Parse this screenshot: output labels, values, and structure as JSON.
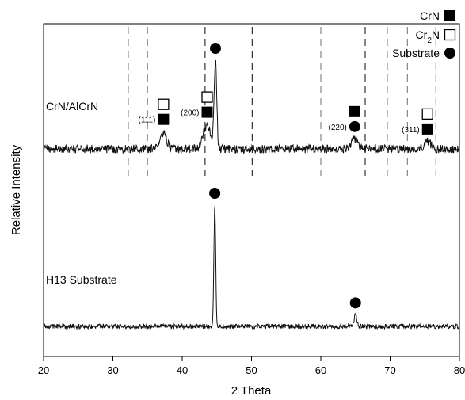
{
  "chart_data": {
    "type": "line",
    "title": "",
    "xlabel": "2 Theta",
    "ylabel": "Relative Intensity",
    "xlim": [
      20,
      80
    ],
    "x_ticks": [
      20,
      30,
      40,
      50,
      60,
      70,
      80
    ],
    "y_ticks_shown": false,
    "grid": false,
    "legend_position": "top-right",
    "legend": [
      {
        "label": "CrN",
        "marker": "filled-square"
      },
      {
        "label_main": "Cr",
        "label_sub": "2",
        "label_tail": "N",
        "marker": "open-square"
      },
      {
        "label": "Substrate",
        "marker": "filled-circle"
      }
    ],
    "series": [
      {
        "name": "CrN/AlCrN",
        "baseline": 0.62,
        "noise": 0.035,
        "peaks": [
          {
            "x": 37.3,
            "height": 0.14,
            "width": 0.45
          },
          {
            "x": 43.6,
            "height": 0.2,
            "width": 0.55
          },
          {
            "x": 44.8,
            "height": 0.73,
            "width": 0.18
          },
          {
            "x": 64.9,
            "height": 0.08,
            "width": 0.5
          },
          {
            "x": 75.4,
            "height": 0.06,
            "width": 0.5
          }
        ]
      },
      {
        "name": "H13 Substrate",
        "baseline": -0.02,
        "noise": 0.02,
        "peaks": [
          {
            "x": 44.7,
            "height": 1.0,
            "width": 0.13
          },
          {
            "x": 65.0,
            "height": 0.09,
            "width": 0.2
          }
        ]
      }
    ],
    "reference_lines": [
      {
        "x": 32.2,
        "color": "#333333"
      },
      {
        "x": 35.0,
        "color": "#888888"
      },
      {
        "x": 43.3,
        "color": "#333333"
      },
      {
        "x": 50.1,
        "color": "#333333"
      },
      {
        "x": 60.0,
        "color": "#888888"
      },
      {
        "x": 66.4,
        "color": "#333333"
      },
      {
        "x": 69.6,
        "color": "#888888"
      },
      {
        "x": 72.5,
        "color": "#888888"
      },
      {
        "x": 76.6,
        "color": "#888888"
      }
    ],
    "annotations": [
      {
        "series": 0,
        "peak_x": 37.3,
        "markers": [
          "open-square",
          "filled-square"
        ],
        "hkl": "(111)"
      },
      {
        "series": 0,
        "peak_x": 43.6,
        "markers": [
          "open-square",
          "filled-square"
        ],
        "hkl": "(200)"
      },
      {
        "series": 0,
        "peak_x": 44.8,
        "markers": [
          "filled-circle"
        ],
        "hkl": ""
      },
      {
        "series": 0,
        "peak_x": 64.9,
        "markers": [
          "filled-square",
          "filled-circle"
        ],
        "hkl": "(220)"
      },
      {
        "series": 0,
        "peak_x": 75.4,
        "markers": [
          "open-square",
          "filled-square"
        ],
        "hkl": "(311)"
      },
      {
        "series": 1,
        "peak_x": 44.7,
        "markers": [
          "filled-circle"
        ],
        "hkl": ""
      },
      {
        "series": 1,
        "peak_x": 65.0,
        "markers": [
          "filled-circle"
        ],
        "hkl": ""
      }
    ]
  }
}
